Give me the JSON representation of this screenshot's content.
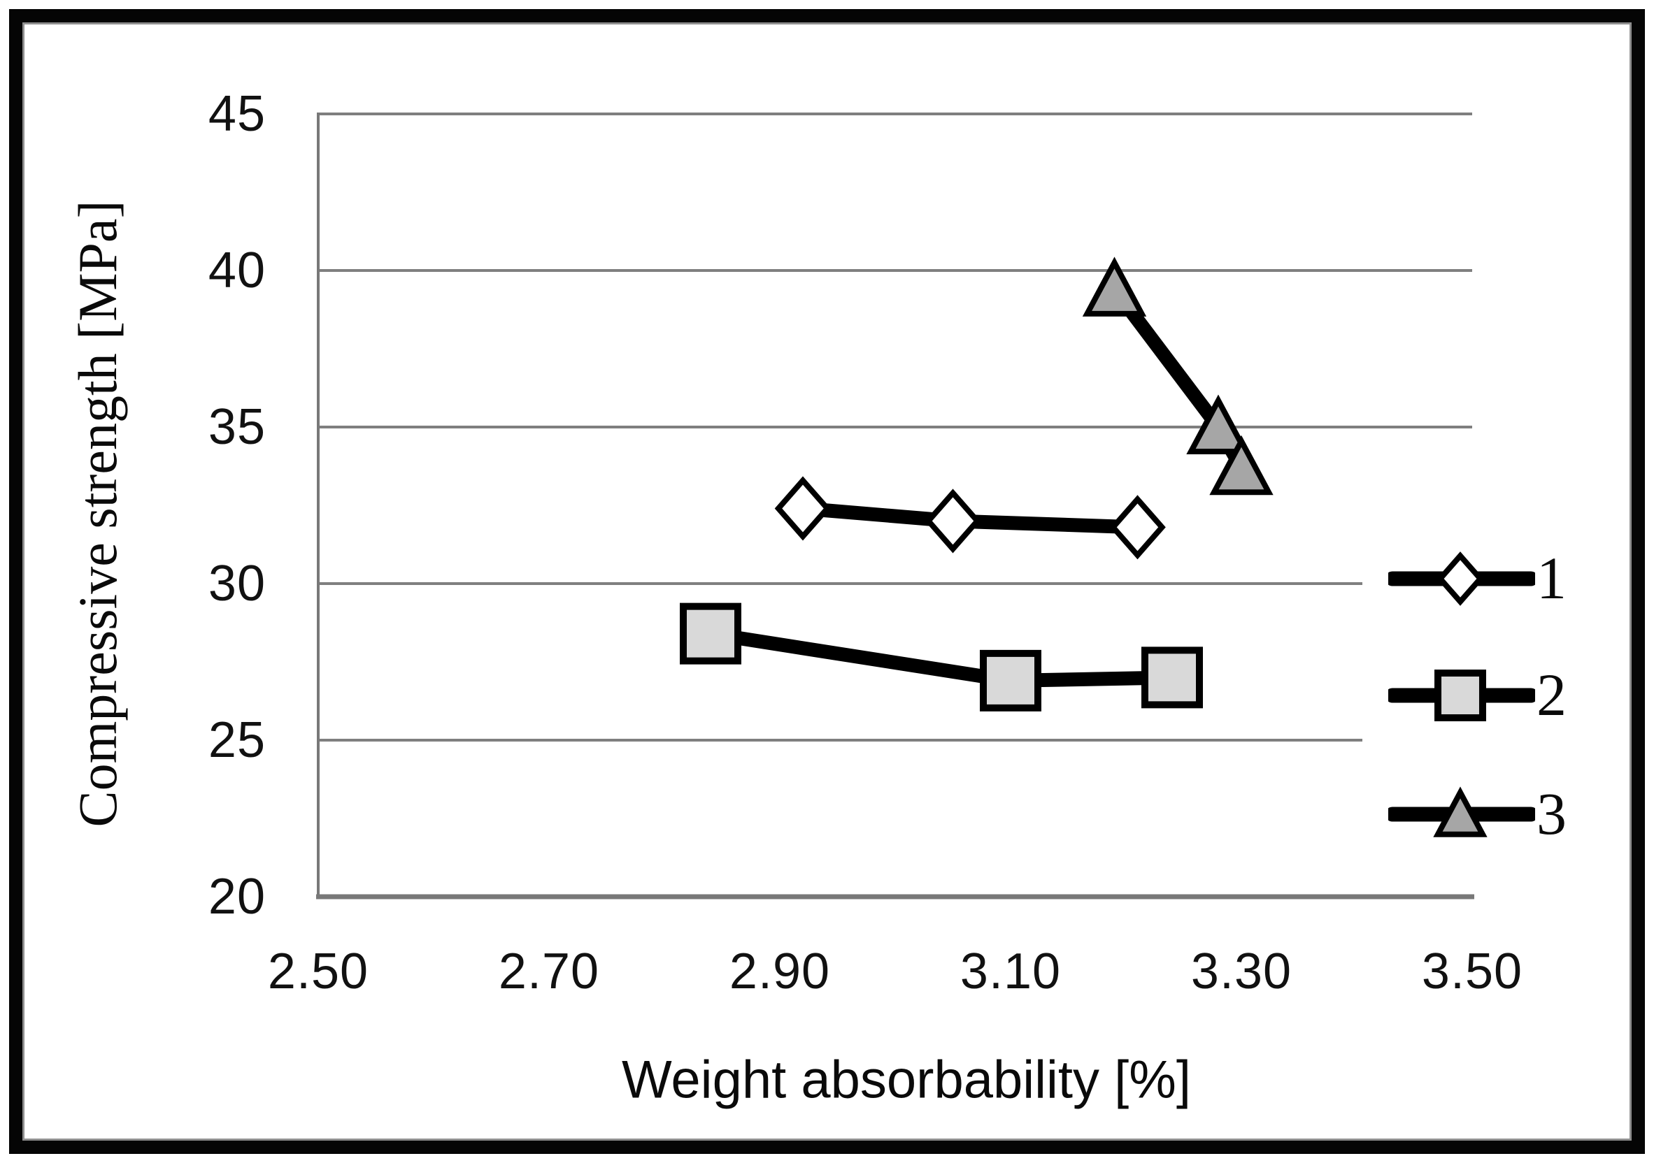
{
  "chart_data": {
    "type": "line",
    "title": "",
    "xlabel": "Weight absorbability [%]",
    "ylabel": "Compressive strength [MPa]",
    "xlim": [
      2.5,
      3.5
    ],
    "ylim": [
      20,
      45
    ],
    "x_ticks": [
      2.5,
      2.7,
      2.9,
      3.1,
      3.3,
      3.5
    ],
    "x_tick_labels": [
      "2.50",
      "2.70",
      "2.90",
      "3.10",
      "3.30",
      "3.50"
    ],
    "y_ticks": [
      45,
      40,
      35,
      30,
      25,
      20
    ],
    "y_tick_labels": [
      "45",
      "40",
      "35",
      "30",
      "25",
      "20"
    ],
    "grid": "horizontal-only",
    "legend_position": "right-inside",
    "colors": {
      "series_line": "#000000",
      "marker_stroke": "#000000",
      "gridline": "#7f7f7f",
      "axis": "#787878",
      "text": "#0a0a0a"
    },
    "series": [
      {
        "name": "1",
        "marker": "diamond",
        "marker_fill": "#ffffff",
        "points": [
          {
            "x": 2.92,
            "y": 32.4
          },
          {
            "x": 3.05,
            "y": 32.0
          },
          {
            "x": 3.21,
            "y": 31.8
          }
        ]
      },
      {
        "name": "2",
        "marker": "square",
        "marker_fill": "#d9d9d9",
        "points": [
          {
            "x": 2.84,
            "y": 28.4
          },
          {
            "x": 3.1,
            "y": 26.9
          },
          {
            "x": 3.24,
            "y": 27.0
          }
        ]
      },
      {
        "name": "3",
        "marker": "triangle",
        "marker_fill": "#a6a6a6",
        "points": [
          {
            "x": 3.19,
            "y": 39.4
          },
          {
            "x": 3.28,
            "y": 35.0
          },
          {
            "x": 3.3,
            "y": 33.7
          }
        ]
      }
    ]
  }
}
